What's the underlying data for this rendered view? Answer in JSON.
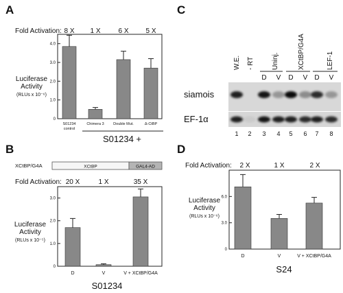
{
  "panel_letters": [
    "A",
    "B",
    "C",
    "D"
  ],
  "chart_data": [
    {
      "panel": "A",
      "type": "bar",
      "fold_activation_label": "Fold Activation:",
      "fold_activation": [
        "8 X",
        "1 X",
        "6 X",
        "5 X"
      ],
      "categories": [
        "S01234 control",
        "Chimera 3",
        "Double Mut.",
        "Δ-CtBP"
      ],
      "category_lines": [
        [
          "S01234",
          "control"
        ],
        [
          "Chimera 3"
        ],
        [
          "Double Mut."
        ],
        [
          "Δ-CtBP"
        ]
      ],
      "values": [
        3.85,
        0.5,
        3.15,
        2.7
      ],
      "errors": [
        0.6,
        0.1,
        0.45,
        0.5
      ],
      "ylabel_lines": [
        "Luciferase",
        "Activity",
        "(RLUs x 10⁻⁶)"
      ],
      "yticks": [
        "0",
        "1.0",
        "2.0",
        "3.0",
        "4.0"
      ],
      "ylim": [
        0,
        4.5
      ],
      "group_label": "S01234 +",
      "bar_color": "#888888"
    },
    {
      "panel": "B",
      "type": "bar",
      "construct_label": "XCtBP/G4A",
      "construct_segments": [
        "XCtBP",
        "GAL4-AD"
      ],
      "fold_activation_label": "Fold Activation:",
      "fold_activation": [
        "20 X",
        "1 X",
        "35 X"
      ],
      "categories": [
        "D",
        "V",
        "V + XCtBP/G4A"
      ],
      "values": [
        1.7,
        0.07,
        3.05
      ],
      "errors": [
        0.4,
        0.04,
        0.35
      ],
      "ylabel_lines": [
        "Luciferase",
        "Activity",
        "(RLUs x 10⁻⁵)"
      ],
      "yticks": [
        "0",
        "1.0",
        "2.0",
        "3.0"
      ],
      "ylim": [
        0,
        3.5
      ],
      "group_label": "S01234",
      "bar_color": "#888888"
    },
    {
      "panel": "D",
      "type": "bar",
      "fold_activation_label": "Fold Activation:",
      "fold_activation": [
        "2 X",
        "1 X",
        "2 X"
      ],
      "categories": [
        "D",
        "V",
        "V + XCtBP/G4A"
      ],
      "values": [
        7.1,
        3.5,
        5.25
      ],
      "errors": [
        1.4,
        0.45,
        0.65
      ],
      "ylabel_lines": [
        "Luciferase",
        "Activity",
        "(RLUs x 10⁻⁶)"
      ],
      "yticks": [
        "0",
        "3.0",
        "6.0"
      ],
      "ylim": [
        0,
        9
      ],
      "group_label": "S24",
      "bar_color": "#888888"
    }
  ],
  "gel": {
    "panel": "C",
    "column_headers": [
      "W.E.",
      "- RT",
      "Uninj.",
      "XCtBP/G4A",
      "LEF-1"
    ],
    "sub_headers": [
      "D",
      "V",
      "D",
      "V",
      "D",
      "V"
    ],
    "row_labels": [
      "siamois",
      "EF-1α"
    ],
    "lane_numbers": [
      "1",
      "2",
      "3",
      "4",
      "5",
      "6",
      "7",
      "8"
    ],
    "siamois_band_intensity": [
      0.85,
      0.0,
      0.9,
      0.3,
      0.95,
      0.35,
      0.8,
      0.3
    ],
    "ef1a_band_intensity": [
      0.85,
      0.05,
      0.9,
      0.85,
      0.85,
      0.8,
      0.85,
      0.8
    ]
  }
}
